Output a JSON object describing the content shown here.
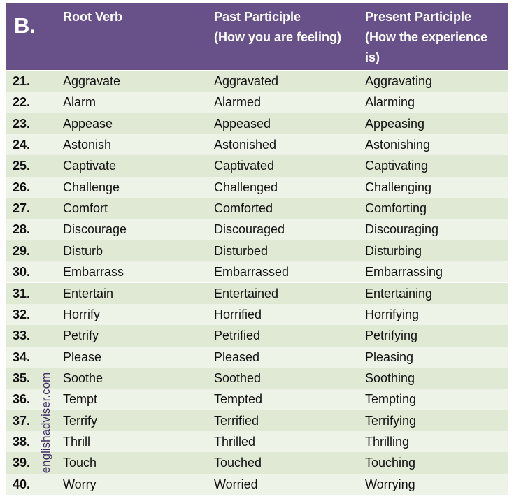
{
  "table": {
    "label": "B.",
    "columns": [
      [
        "Root Verb"
      ],
      [
        "Past Participle",
        "(How you are feeling)"
      ],
      [
        "Present Participle",
        "(How the experience",
        "is)"
      ]
    ],
    "rows": [
      [
        "21.",
        "Aggravate",
        "Aggravated",
        "Aggravating"
      ],
      [
        "22.",
        "Alarm",
        "Alarmed",
        "Alarming"
      ],
      [
        "23.",
        "Appease",
        "Appeased",
        "Appeasing"
      ],
      [
        "24.",
        "Astonish",
        "Astonished",
        "Astonishing"
      ],
      [
        "25.",
        "Captivate",
        "Captivated",
        "Captivating"
      ],
      [
        "26.",
        "Challenge",
        "Challenged",
        "Challenging"
      ],
      [
        "27.",
        "Comfort",
        "Comforted",
        "Comforting"
      ],
      [
        "28.",
        "Discourage",
        "Discouraged",
        "Discouraging"
      ],
      [
        "29.",
        "Disturb",
        "Disturbed",
        "Disturbing"
      ],
      [
        "30.",
        "Embarrass",
        "Embarrassed",
        "Embarrassing"
      ],
      [
        "31.",
        "Entertain",
        "Entertained",
        "Entertaining"
      ],
      [
        "32.",
        "Horrify",
        "Horrified",
        "Horrifying"
      ],
      [
        "33.",
        "Petrify",
        "Petrified",
        "Petrifying"
      ],
      [
        "34.",
        "Please",
        "Pleased",
        "Pleasing"
      ],
      [
        "35.",
        "Soothe",
        "Soothed",
        "Soothing"
      ],
      [
        "36.",
        "Tempt",
        "Tempted",
        "Tempting"
      ],
      [
        "37.",
        "Terrify",
        "Terrified",
        "Terrifying"
      ],
      [
        "38.",
        "Thrill",
        "Thrilled",
        "Thrilling"
      ],
      [
        "39.",
        "Touch",
        "Touched",
        "Touching"
      ],
      [
        "40.",
        "Worry",
        "Worried",
        "Worrying"
      ]
    ]
  },
  "watermark": "englishadviser.com"
}
